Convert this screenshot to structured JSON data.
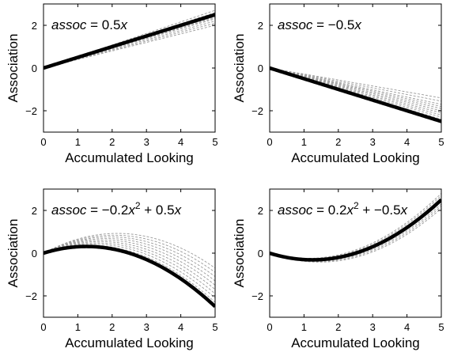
{
  "chart_data": [
    {
      "type": "line",
      "annotation": {
        "var": "assoc",
        "rest": " = 0.5",
        "x": "x"
      },
      "xlabel": "Accumulated Looking",
      "ylabel": "Association",
      "xlim": [
        0,
        5
      ],
      "ylim": [
        -3,
        3
      ],
      "xticks": [
        0,
        1,
        2,
        3,
        4,
        5
      ],
      "yticks": [
        -2,
        0,
        2
      ],
      "coefficients": {
        "a": 0,
        "b": 0.5
      },
      "series": [
        {
          "x": [
            0,
            1,
            2,
            3,
            4,
            5
          ],
          "values": [
            0,
            0.5,
            1.0,
            1.5,
            2.0,
            2.5
          ]
        }
      ],
      "samples": [
        {
          "values_at_5": [
            2.7,
            2.6,
            2.55,
            2.45,
            2.4,
            2.35,
            2.3,
            2.2,
            2.1,
            2.0
          ]
        }
      ]
    },
    {
      "type": "line",
      "annotation": {
        "var": "assoc",
        "rest": " = −0.5",
        "x": "x"
      },
      "xlabel": "Accumulated Looking",
      "ylabel": "Association",
      "xlim": [
        0,
        5
      ],
      "ylim": [
        -3,
        3
      ],
      "xticks": [
        0,
        1,
        2,
        3,
        4,
        5
      ],
      "yticks": [
        -2,
        0,
        2
      ],
      "coefficients": {
        "a": 0,
        "b": -0.5
      },
      "series": [
        {
          "x": [
            0,
            1,
            2,
            3,
            4,
            5
          ],
          "values": [
            0,
            -0.5,
            -1.0,
            -1.5,
            -2.0,
            -2.5
          ]
        }
      ],
      "samples": [
        {
          "values_at_5": [
            -1.4,
            -1.55,
            -1.7,
            -1.8,
            -1.9,
            -2.0,
            -2.1,
            -2.2,
            -2.3,
            -2.4
          ]
        }
      ]
    },
    {
      "type": "line",
      "annotation": {
        "var": "assoc",
        "rest": " = −0.2",
        "x": "x",
        "sup": "2",
        "tail": " + 0.5",
        "x2": "x"
      },
      "xlabel": "Accumulated Looking",
      "ylabel": "Association",
      "xlim": [
        0,
        5
      ],
      "ylim": [
        -3,
        3
      ],
      "xticks": [
        0,
        1,
        2,
        3,
        4,
        5
      ],
      "yticks": [
        -2,
        0,
        2
      ],
      "coefficients": {
        "a": -0.2,
        "b": 0.5
      },
      "series": [
        {
          "x": [
            0,
            1,
            1.25,
            2,
            3,
            4,
            5
          ],
          "values": [
            0,
            0.3,
            0.31,
            0.2,
            -0.3,
            -1.2,
            -2.5
          ]
        }
      ],
      "samples": [
        {
          "values_at_5": [
            -0.7,
            -0.9,
            -1.1,
            -1.3,
            -1.5,
            -1.7,
            -1.9,
            -2.1,
            -2.3
          ]
        }
      ]
    },
    {
      "type": "line",
      "annotation": {
        "var": "assoc",
        "rest": " = 0.2",
        "x": "x",
        "sup": "2",
        "tail": " + −0.5",
        "x2": "x"
      },
      "xlabel": "Accumulated Looking",
      "ylabel": "Association",
      "xlim": [
        0,
        5
      ],
      "ylim": [
        -3,
        3
      ],
      "xticks": [
        0,
        1,
        2,
        3,
        4,
        5
      ],
      "yticks": [
        -2,
        0,
        2
      ],
      "coefficients": {
        "a": 0.2,
        "b": -0.5
      },
      "series": [
        {
          "x": [
            0,
            1,
            1.25,
            2,
            3,
            4,
            5
          ],
          "values": [
            0,
            -0.3,
            -0.31,
            -0.2,
            0.3,
            1.2,
            2.5
          ]
        }
      ],
      "samples": [
        {
          "values_at_5": [
            2.8,
            2.7,
            2.6,
            2.5,
            2.4,
            2.3,
            2.2,
            2.1
          ]
        }
      ]
    }
  ]
}
